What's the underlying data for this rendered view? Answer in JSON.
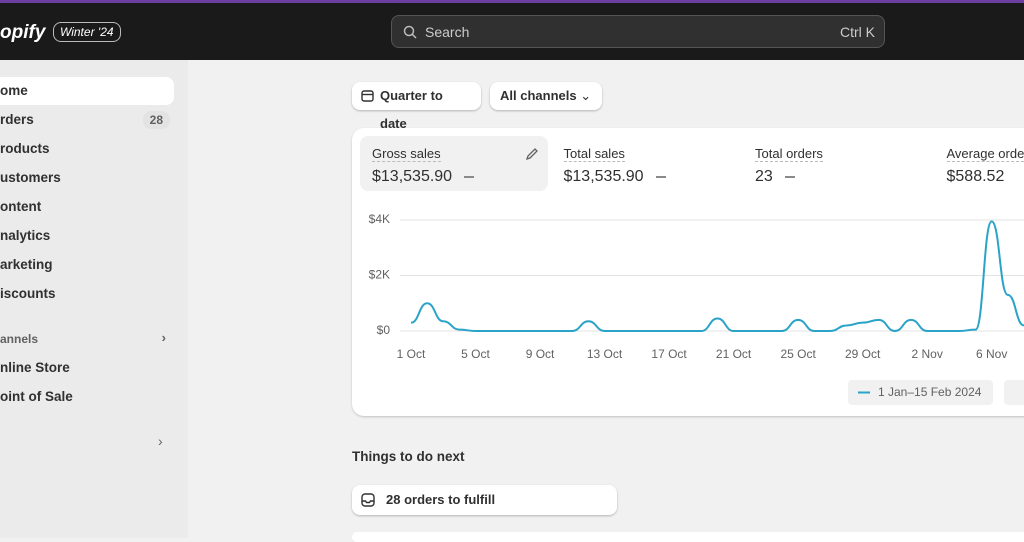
{
  "header": {
    "brand": "opify",
    "edition": "Winter '24",
    "search": "Search",
    "shortcut": "Ctrl K"
  },
  "nav": [
    {
      "label": "ome"
    },
    {
      "label": "rders",
      "badge": 28
    },
    {
      "label": "roducts"
    },
    {
      "label": "ustomers"
    },
    {
      "label": "ontent"
    },
    {
      "label": "nalytics"
    },
    {
      "label": "arketing"
    },
    {
      "label": "iscounts"
    }
  ],
  "channels": {
    "title": "annels",
    "items": [
      "nline Store",
      "oint of Sale"
    ]
  },
  "filters": [
    "Quarter to date",
    "All channels"
  ],
  "metrics": [
    {
      "label": "Gross sales",
      "value": "$13,535.90"
    },
    {
      "label": "Total sales",
      "value": "$13,535.90"
    },
    {
      "label": "Total orders",
      "value": "23"
    },
    {
      "label": "Average orde",
      "value": "$588.52"
    }
  ],
  "chart_data": {
    "type": "line",
    "categories": [
      "1 Oct",
      null,
      null,
      null,
      "5 Oct",
      null,
      null,
      null,
      "9 Oct",
      null,
      null,
      null,
      "13 Oct",
      null,
      null,
      null,
      "17 Oct",
      null,
      null,
      null,
      "21 Oct",
      null,
      null,
      null,
      "25 Oct",
      null,
      null,
      null,
      "29 Oct",
      null,
      null,
      null,
      "2 Nov",
      null,
      null,
      null,
      "6 Nov",
      null,
      null
    ],
    "series": [
      {
        "name": "1 Jan–15 Feb 2024",
        "color": "#29a3c7",
        "values": [
          300,
          1000,
          350,
          50,
          0,
          0,
          0,
          0,
          0,
          0,
          0,
          350,
          0,
          0,
          0,
          0,
          0,
          0,
          0,
          450,
          0,
          0,
          0,
          0,
          400,
          0,
          0,
          200,
          300,
          400,
          0,
          400,
          0,
          0,
          0,
          50,
          3950,
          1300,
          200
        ]
      }
    ],
    "ylim": [
      0,
      4000
    ],
    "yticks": [
      {
        "value": 0,
        "label": "$0"
      },
      {
        "value": 2000,
        "label": "$2K"
      },
      {
        "value": 4000,
        "label": "$4K"
      }
    ],
    "grid": true
  },
  "todo": {
    "title": "Things to do next",
    "items": [
      "28 orders to fulfill"
    ]
  }
}
